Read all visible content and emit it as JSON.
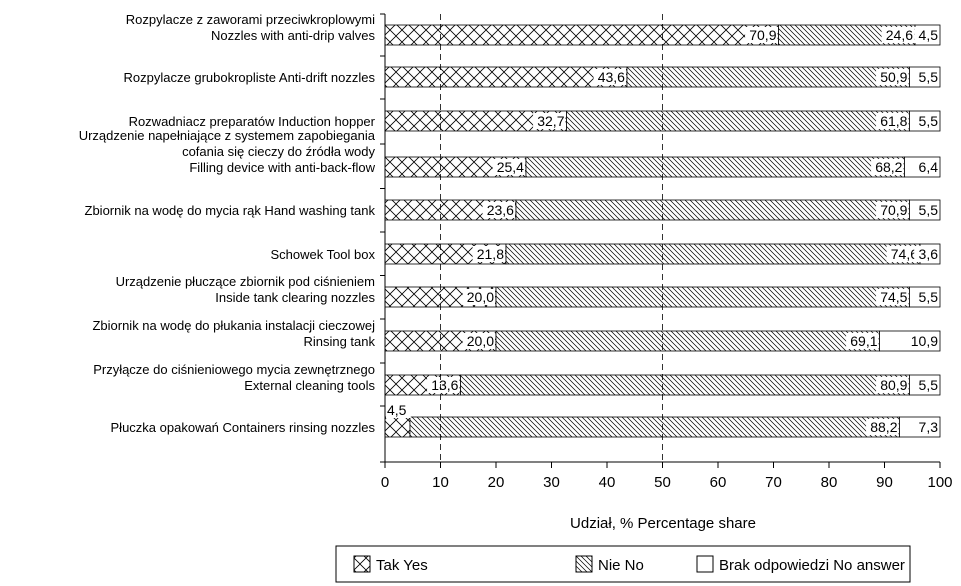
{
  "chart_data": {
    "type": "bar",
    "stacked": true,
    "orientation": "horizontal",
    "categories": [
      [
        "Rozpylacze z zaworami przeciwkroplowymi",
        "Nozzles with anti-drip valves"
      ],
      [
        "Rozpylacze grubokropliste   Anti-drift nozzles"
      ],
      [
        "Rozwadniacz preparatów   Induction hopper"
      ],
      [
        "Urządzenie napełniające z systemem zapobiegania",
        "cofania się cieczy do źródła wody",
        "Filling device with anti-back-flow"
      ],
      [
        "Zbiornik na wodę do mycia rąk   Hand washing tank"
      ],
      [
        "Schowek   Tool box"
      ],
      [
        "Urządzenie płuczące zbiornik pod ciśnieniem",
        "Inside tank clearing nozzles"
      ],
      [
        "Zbiornik na wodę do płukania instalacji cieczowej",
        "Rinsing tank"
      ],
      [
        "Przyłącze do ciśnieniowego mycia zewnętrznego",
        "External cleaning tools"
      ],
      [
        "Płuczka opakowań   Containers rinsing nozzles"
      ]
    ],
    "series": [
      {
        "name": "Tak  Yes",
        "pattern": "crosshatch",
        "values": [
          70.9,
          43.6,
          32.7,
          25.4,
          23.6,
          21.8,
          20.0,
          20.0,
          13.6,
          4.5
        ],
        "labels": [
          "70,9",
          "43,6",
          "32,7",
          "25,4",
          "23,6",
          "21,8",
          "20,0",
          "20,0",
          "13,6",
          "4,5"
        ]
      },
      {
        "name": "Nie  No",
        "pattern": "diagonal",
        "values": [
          24.6,
          50.9,
          61.8,
          68.2,
          70.9,
          74.6,
          74.5,
          69.1,
          80.9,
          88.2
        ],
        "labels": [
          "24,6",
          "50,9",
          "61,8",
          "68,2",
          "70,9",
          "74,6",
          "74,5",
          "69,1",
          "80,9",
          "88,2"
        ]
      },
      {
        "name": "Brak odpowiedzi   No answer",
        "pattern": "none",
        "values": [
          4.5,
          5.5,
          5.5,
          6.4,
          5.5,
          3.6,
          5.5,
          10.9,
          5.5,
          7.3
        ],
        "labels": [
          "4,5",
          "5,5",
          "5,5",
          "6,4",
          "5,5",
          "3,6",
          "5,5",
          "10,9",
          "5,5",
          "7,3"
        ]
      }
    ],
    "xlabel": "Udział, %   Percentage share",
    "xlim": [
      0,
      100
    ],
    "xticks": [
      0,
      10,
      20,
      30,
      40,
      50,
      60,
      70,
      80,
      90,
      100
    ],
    "grid": false,
    "legend_position": "bottom",
    "colors": {
      "line": "#000000",
      "background": "#ffffff"
    }
  }
}
